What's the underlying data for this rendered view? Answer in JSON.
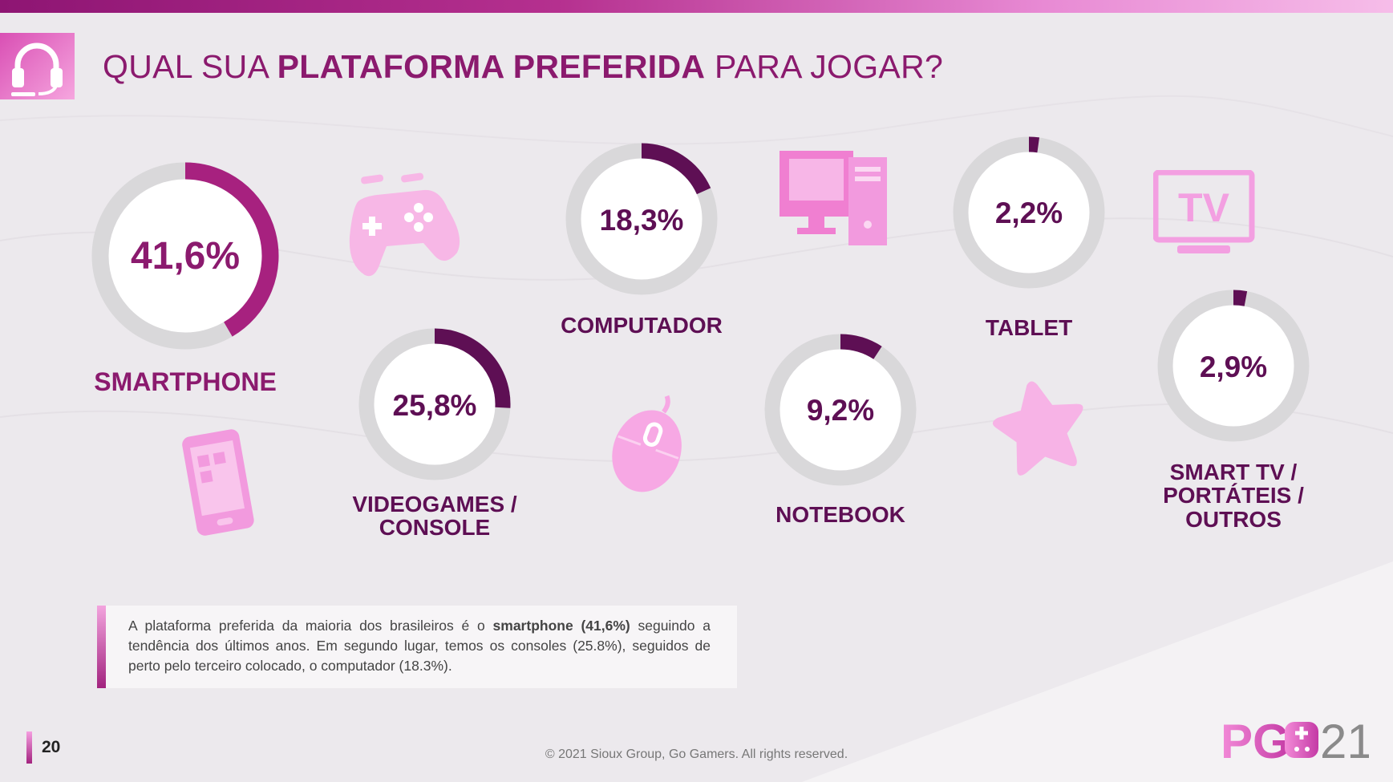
{
  "title": {
    "prefix": "QUAL SUA ",
    "bold": "PLATAFORMA PREFERIDA",
    "suffix": " PARA JOGAR?"
  },
  "colors": {
    "title": "#8b1a6e",
    "smartphone_arc": "#a7217f",
    "other_arc": "#5e0f54",
    "track": "#d9d8da",
    "icon_pink": "#f49be0"
  },
  "chart_data": {
    "type": "donut",
    "categories": [
      "SMARTPHONE",
      "VIDEOGAMES / CONSOLE",
      "COMPUTADOR",
      "NOTEBOOK",
      "TABLET",
      "SMART TV / PORTÁTEIS / OUTROS"
    ],
    "values": [
      41.6,
      25.8,
      18.3,
      9.2,
      2.2,
      2.9
    ],
    "labels": [
      "41,6%",
      "25,8%",
      "18,3%",
      "9,2%",
      "2,2%",
      "2,9%"
    ],
    "unit": "%"
  },
  "icons": [
    "headset-icon",
    "gamepad-icon",
    "monitor-icon",
    "tv-icon",
    "smartphone-icon",
    "mouse-icon",
    "star-icon"
  ],
  "note": {
    "text_before": "A plataforma preferida da maioria dos brasileiros é o ",
    "bold": "smartphone (41,6%)",
    "text_after": " seguindo a tendência dos últimos anos. Em segundo lugar, temos os consoles (25.8%), seguidos de perto pelo terceiro colocado, o computador (18.3%)."
  },
  "page_number": "20",
  "footer": "© 2021 Sioux Group, Go Gamers. All rights reserved.",
  "logo": {
    "letters": "PG",
    "year": "21"
  }
}
